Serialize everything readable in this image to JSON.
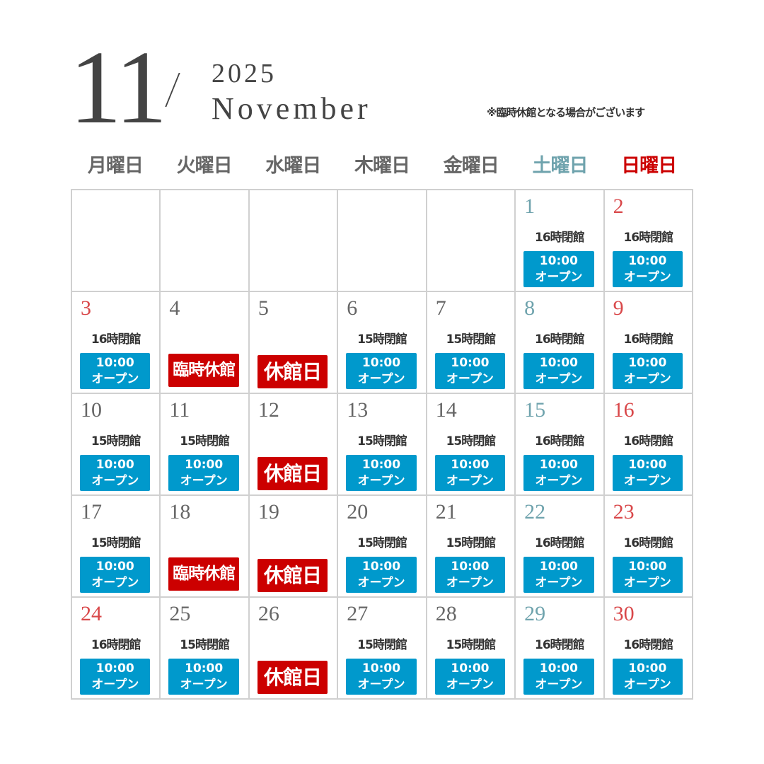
{
  "header": {
    "month": "11",
    "year": "2025",
    "month_en": "November",
    "note": "※臨時休館となる場合がございます"
  },
  "colors": {
    "open": "#0099cc",
    "closed": "#cc0000",
    "saturday": "#6fa3ad",
    "sunday": "#d9484a",
    "sunday_header": "#cc0000"
  },
  "weekdays": [
    {
      "label": "月曜日",
      "kind": "weekday"
    },
    {
      "label": "火曜日",
      "kind": "weekday"
    },
    {
      "label": "水曜日",
      "kind": "weekday"
    },
    {
      "label": "木曜日",
      "kind": "weekday"
    },
    {
      "label": "金曜日",
      "kind": "weekday"
    },
    {
      "label": "土曜日",
      "kind": "sat"
    },
    {
      "label": "日曜日",
      "kind": "sun"
    }
  ],
  "labels": {
    "open_time": "10:00",
    "open_text": "オープン",
    "temp_closed": "臨時休館",
    "regular_closed": "休館日"
  },
  "days": [
    null,
    null,
    null,
    null,
    null,
    {
      "day": "1",
      "kind": "sat",
      "close": "16時閉館",
      "status": "open"
    },
    {
      "day": "2",
      "kind": "sun",
      "close": "16時閉館",
      "status": "open"
    },
    {
      "day": "3",
      "kind": "sun",
      "close": "16時閉館",
      "status": "open"
    },
    {
      "day": "4",
      "kind": "weekday",
      "status": "temp"
    },
    {
      "day": "5",
      "kind": "weekday",
      "status": "reg"
    },
    {
      "day": "6",
      "kind": "weekday",
      "close": "15時閉館",
      "status": "open"
    },
    {
      "day": "7",
      "kind": "weekday",
      "close": "15時閉館",
      "status": "open"
    },
    {
      "day": "8",
      "kind": "sat",
      "close": "16時閉館",
      "status": "open"
    },
    {
      "day": "9",
      "kind": "sun",
      "close": "16時閉館",
      "status": "open"
    },
    {
      "day": "10",
      "kind": "weekday",
      "close": "15時閉館",
      "status": "open"
    },
    {
      "day": "11",
      "kind": "weekday",
      "close": "15時閉館",
      "status": "open"
    },
    {
      "day": "12",
      "kind": "weekday",
      "status": "reg"
    },
    {
      "day": "13",
      "kind": "weekday",
      "close": "15時閉館",
      "status": "open"
    },
    {
      "day": "14",
      "kind": "weekday",
      "close": "15時閉館",
      "status": "open"
    },
    {
      "day": "15",
      "kind": "sat",
      "close": "16時閉館",
      "status": "open"
    },
    {
      "day": "16",
      "kind": "sun",
      "close": "16時閉館",
      "status": "open"
    },
    {
      "day": "17",
      "kind": "weekday",
      "close": "15時閉館",
      "status": "open"
    },
    {
      "day": "18",
      "kind": "weekday",
      "status": "temp"
    },
    {
      "day": "19",
      "kind": "weekday",
      "status": "reg"
    },
    {
      "day": "20",
      "kind": "weekday",
      "close": "15時閉館",
      "status": "open"
    },
    {
      "day": "21",
      "kind": "weekday",
      "close": "15時閉館",
      "status": "open"
    },
    {
      "day": "22",
      "kind": "sat",
      "close": "16時閉館",
      "status": "open"
    },
    {
      "day": "23",
      "kind": "sun",
      "close": "16時閉館",
      "status": "open"
    },
    {
      "day": "24",
      "kind": "sun",
      "close": "16時閉館",
      "status": "open"
    },
    {
      "day": "25",
      "kind": "weekday",
      "close": "15時閉館",
      "status": "open"
    },
    {
      "day": "26",
      "kind": "weekday",
      "status": "reg"
    },
    {
      "day": "27",
      "kind": "weekday",
      "close": "15時閉館",
      "status": "open"
    },
    {
      "day": "28",
      "kind": "weekday",
      "close": "15時閉館",
      "status": "open"
    },
    {
      "day": "29",
      "kind": "sat",
      "close": "16時閉館",
      "status": "open"
    },
    {
      "day": "30",
      "kind": "sun",
      "close": "16時閉館",
      "status": "open"
    }
  ]
}
